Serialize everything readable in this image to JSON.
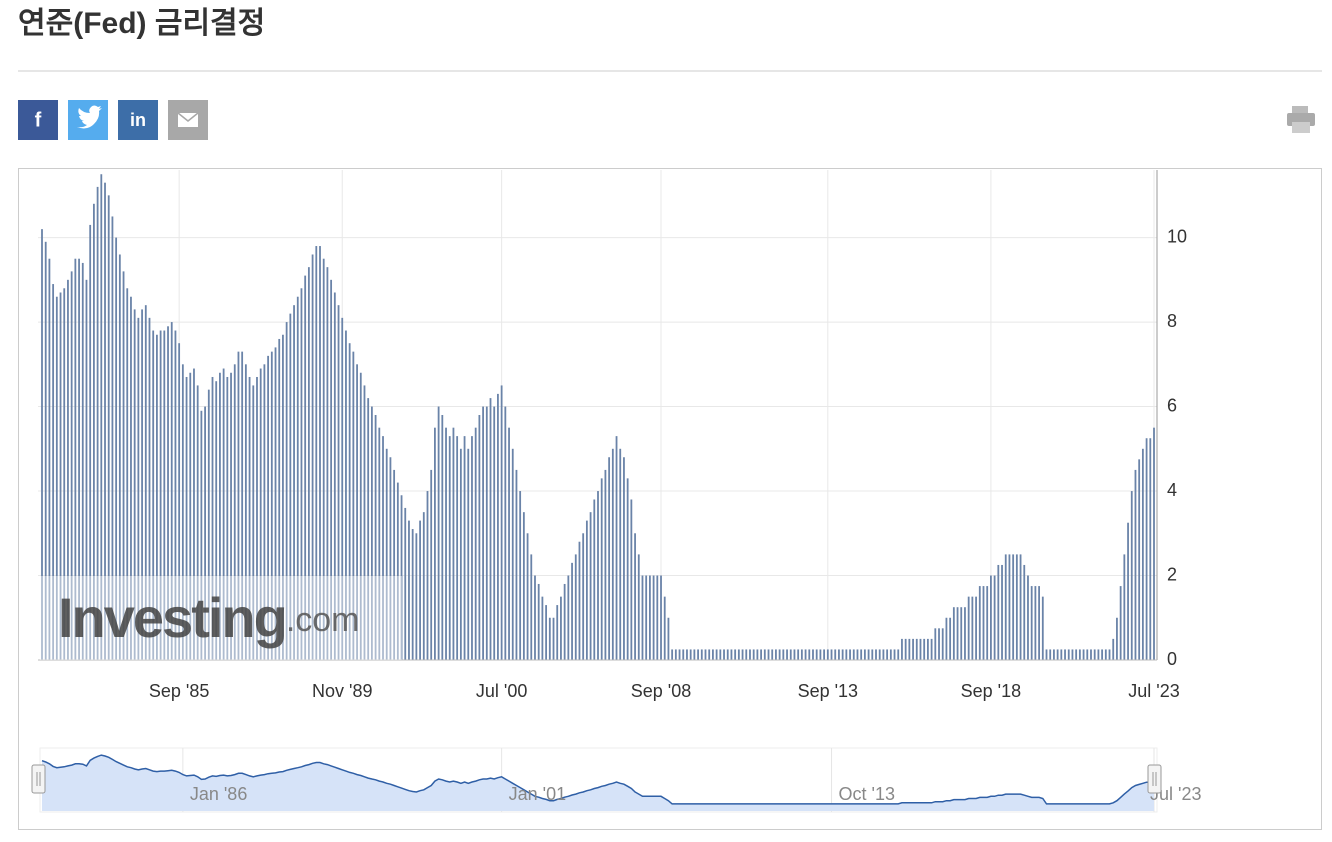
{
  "header": {
    "title": "연준(Fed) 금리결정",
    "share": [
      "f",
      "in"
    ]
  },
  "chart_data": {
    "type": "bar",
    "color": "#6a83a8",
    "watermark": [
      "Investing",
      ".com"
    ],
    "values": [
      10.2,
      9.9,
      9.5,
      8.9,
      8.6,
      8.7,
      8.8,
      9.0,
      9.2,
      9.5,
      9.5,
      9.4,
      9.0,
      10.3,
      10.8,
      11.2,
      11.5,
      11.3,
      11.0,
      10.5,
      10.0,
      9.6,
      9.2,
      8.8,
      8.6,
      8.3,
      8.1,
      8.3,
      8.4,
      8.1,
      7.8,
      7.7,
      7.8,
      7.8,
      7.9,
      8.0,
      7.8,
      7.5,
      7.0,
      6.7,
      6.8,
      6.9,
      6.5,
      5.9,
      6.0,
      6.4,
      6.7,
      6.6,
      6.8,
      6.9,
      6.7,
      6.8,
      7.0,
      7.3,
      7.3,
      7.0,
      6.7,
      6.5,
      6.7,
      6.9,
      7.0,
      7.2,
      7.3,
      7.4,
      7.6,
      7.7,
      8.0,
      8.2,
      8.4,
      8.6,
      8.8,
      9.1,
      9.3,
      9.6,
      9.8,
      9.8,
      9.5,
      9.3,
      9.0,
      8.7,
      8.4,
      8.1,
      7.8,
      7.5,
      7.3,
      7.0,
      6.8,
      6.5,
      6.2,
      6.0,
      5.8,
      5.5,
      5.3,
      5.0,
      4.8,
      4.5,
      4.2,
      3.9,
      3.6,
      3.3,
      3.1,
      3.0,
      3.3,
      3.5,
      4.0,
      4.5,
      5.5,
      6.0,
      5.8,
      5.5,
      5.3,
      5.5,
      5.3,
      5.0,
      5.3,
      5.0,
      5.3,
      5.5,
      5.8,
      6.0,
      6.0,
      6.2,
      6.0,
      6.3,
      6.5,
      6.0,
      5.5,
      5.0,
      4.5,
      4.0,
      3.5,
      3.0,
      2.5,
      2.0,
      1.8,
      1.5,
      1.3,
      1.0,
      1.0,
      1.3,
      1.5,
      1.8,
      2.0,
      2.3,
      2.5,
      2.8,
      3.0,
      3.3,
      3.5,
      3.8,
      4.0,
      4.3,
      4.5,
      4.8,
      5.0,
      5.3,
      5.0,
      4.8,
      4.3,
      3.8,
      3.0,
      2.5,
      2.0,
      2.0,
      2.0,
      2.0,
      2.0,
      2.0,
      1.5,
      1.0,
      0.25,
      0.25,
      0.25,
      0.25,
      0.25,
      0.25,
      0.25,
      0.25,
      0.25,
      0.25,
      0.25,
      0.25,
      0.25,
      0.25,
      0.25,
      0.25,
      0.25,
      0.25,
      0.25,
      0.25,
      0.25,
      0.25,
      0.25,
      0.25,
      0.25,
      0.25,
      0.25,
      0.25,
      0.25,
      0.25,
      0.25,
      0.25,
      0.25,
      0.25,
      0.25,
      0.25,
      0.25,
      0.25,
      0.25,
      0.25,
      0.25,
      0.25,
      0.25,
      0.25,
      0.25,
      0.25,
      0.25,
      0.25,
      0.25,
      0.25,
      0.25,
      0.25,
      0.25,
      0.25,
      0.25,
      0.25,
      0.25,
      0.25,
      0.25,
      0.25,
      0.25,
      0.25,
      0.5,
      0.5,
      0.5,
      0.5,
      0.5,
      0.5,
      0.5,
      0.5,
      0.5,
      0.75,
      0.75,
      0.75,
      1.0,
      1.0,
      1.25,
      1.25,
      1.25,
      1.25,
      1.5,
      1.5,
      1.5,
      1.75,
      1.75,
      1.75,
      2.0,
      2.0,
      2.25,
      2.25,
      2.5,
      2.5,
      2.5,
      2.5,
      2.5,
      2.25,
      2.0,
      1.75,
      1.75,
      1.75,
      1.5,
      0.25,
      0.25,
      0.25,
      0.25,
      0.25,
      0.25,
      0.25,
      0.25,
      0.25,
      0.25,
      0.25,
      0.25,
      0.25,
      0.25,
      0.25,
      0.25,
      0.25,
      0.25,
      0.5,
      1.0,
      1.75,
      2.5,
      3.25,
      4.0,
      4.5,
      4.75,
      5.0,
      5.25,
      5.25,
      5.5
    ],
    "xlim": [
      0,
      300
    ],
    "xticks": [
      {
        "value": 37,
        "label": "Sep '85"
      },
      {
        "value": 81,
        "label": "Nov '89"
      },
      {
        "value": 124,
        "label": "Jul '00"
      },
      {
        "value": 167,
        "label": "Sep '08"
      },
      {
        "value": 212,
        "label": "Sep '13"
      },
      {
        "value": 256,
        "label": "Sep '18"
      },
      {
        "value": 300,
        "label": "Jul '23"
      }
    ],
    "ylim": [
      0,
      11.6
    ],
    "yticks": [
      0,
      2,
      4,
      6,
      8,
      10
    ],
    "grid": true,
    "navigator": {
      "color": "#2f5fa6",
      "fill": "#d6e3f8",
      "xticks": [
        {
          "value": 38,
          "label": "Jan '86"
        },
        {
          "value": 124,
          "label": "Jan '01"
        },
        {
          "value": 213,
          "label": "Oct '13"
        },
        {
          "value": 300,
          "label": "Jul '23"
        }
      ]
    }
  }
}
